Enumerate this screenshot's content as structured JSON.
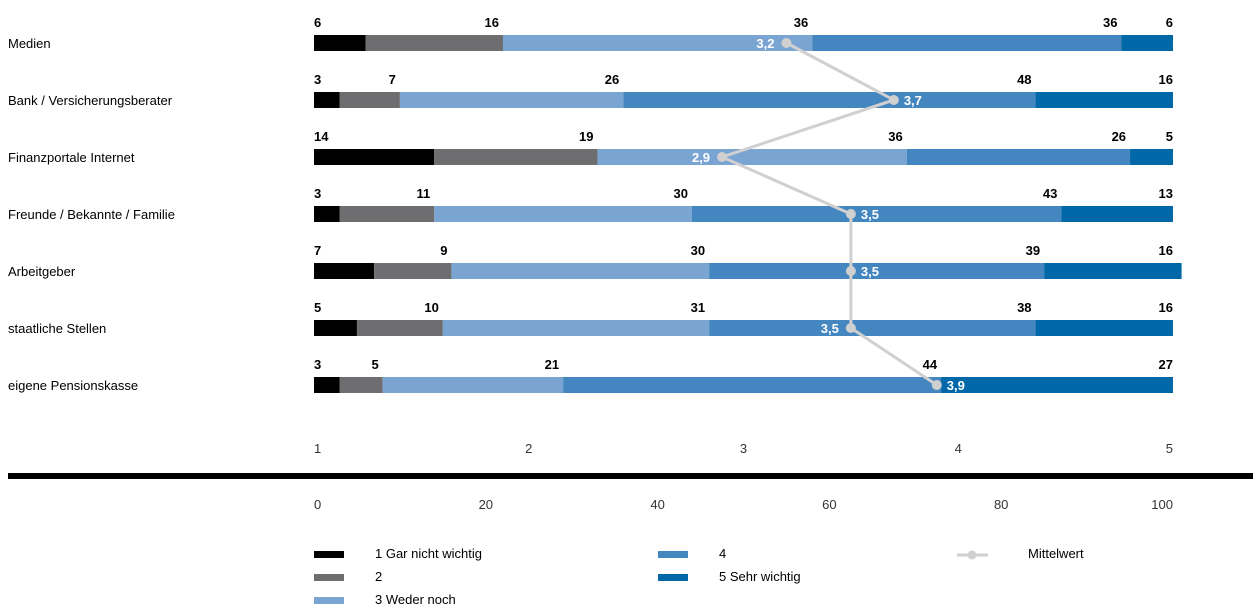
{
  "chart_data": {
    "type": "bar",
    "stacked": true,
    "orientation": "horizontal",
    "categories": [
      "Medien",
      "Bank / Versicherungsberater",
      "Finanzportale Internet",
      "Freunde / Bekannte / Familie",
      "Arbeitgeber",
      "staatliche Stellen",
      "eigene Pensionskasse"
    ],
    "series": [
      {
        "name": "1  Gar nicht wichtig",
        "color": "#000000",
        "values": [
          6,
          3,
          14,
          3,
          7,
          5,
          3
        ]
      },
      {
        "name": "2",
        "color": "#6e6e70",
        "values": [
          16,
          7,
          19,
          11,
          9,
          10,
          5
        ]
      },
      {
        "name": "3  Weder noch",
        "color": "#7aa5d3",
        "values": [
          36,
          26,
          36,
          30,
          30,
          31,
          21
        ]
      },
      {
        "name": "4",
        "color": "#4487c0",
        "values": [
          36,
          48,
          26,
          43,
          39,
          38,
          44
        ]
      },
      {
        "name": "5  Sehr wichtig",
        "color": "#0068a8",
        "values": [
          6,
          16,
          5,
          13,
          16,
          16,
          27
        ]
      }
    ],
    "mean": {
      "name": "Mittelwert",
      "color": "#d0d0d0",
      "values": [
        3.2,
        3.7,
        2.9,
        3.5,
        3.5,
        3.5,
        3.9
      ],
      "labels": [
        "3,2",
        "3,7",
        "2,9",
        "3,5",
        "3,5",
        "3,5",
        "3,9"
      ]
    },
    "mean_axis": {
      "range": [
        1,
        5
      ],
      "ticks": [
        "1",
        "2",
        "3",
        "4",
        "5"
      ]
    },
    "percent_axis": {
      "range": [
        0,
        100
      ],
      "ticks": [
        "0",
        "20",
        "40",
        "60",
        "80",
        "100"
      ]
    },
    "legend_position": "bottom"
  }
}
